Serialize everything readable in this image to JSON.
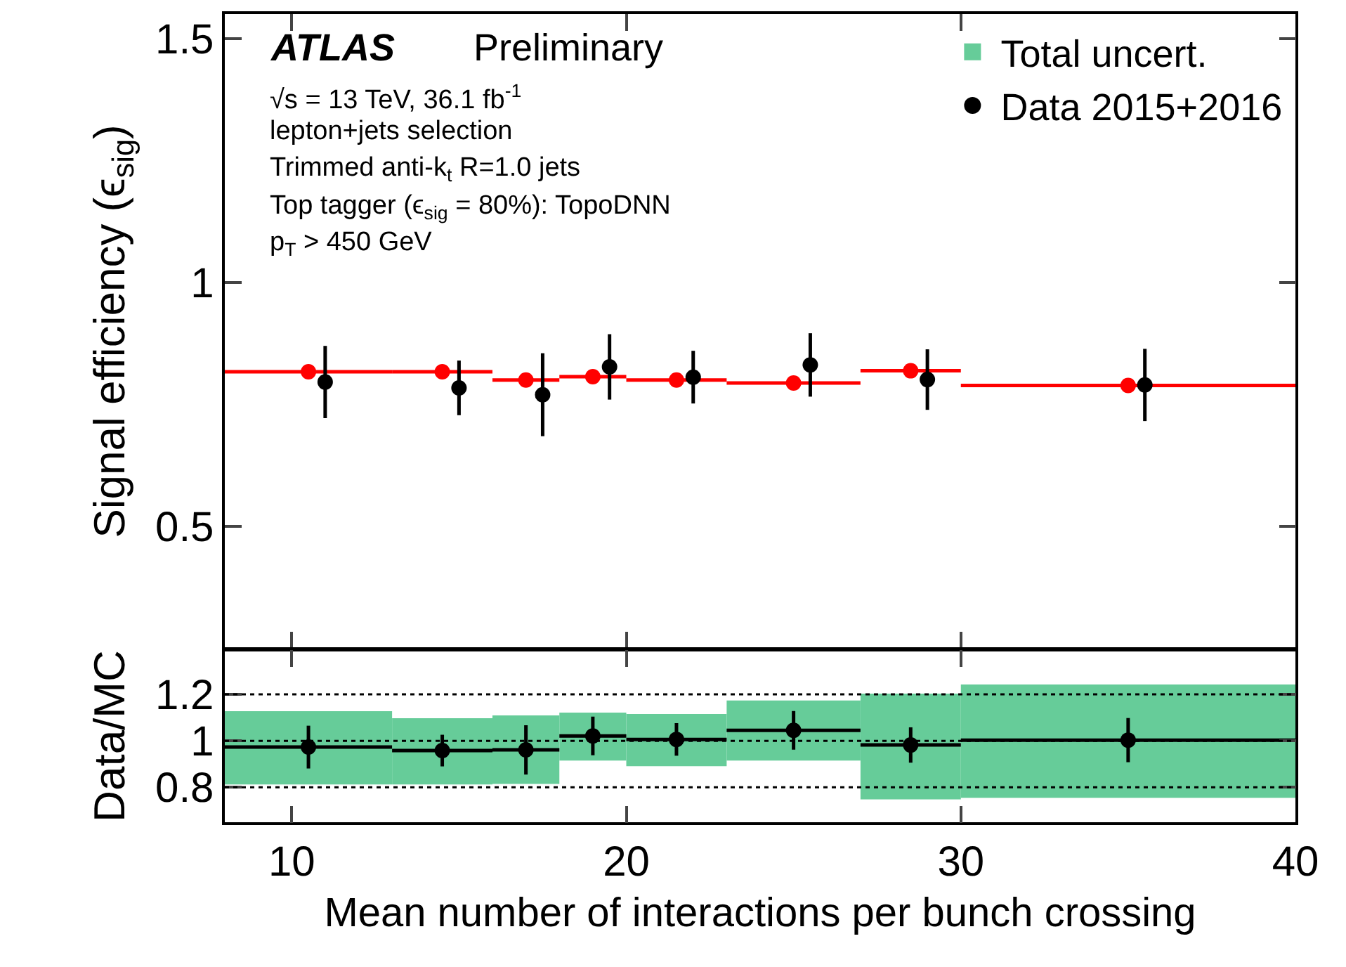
{
  "chart_data": [
    {
      "type": "scatter",
      "ylabel": "Signal efficiency (ϵ$_{sig}$)",
      "xlim": [
        8,
        40
      ],
      "ylim": [
        0.25,
        1.55
      ],
      "yticks": [
        0.5,
        1,
        1.5
      ],
      "xticks": [
        10,
        20,
        30,
        40
      ],
      "tick_labels": "y",
      "legend": "top right",
      "marker": "circle",
      "annotations": [
        "ATLAS",
        "Preliminary",
        "√s = 13 TeV, 36.1 fb$^{-1}$",
        "lepton+jets selection",
        "Trimmed anti-k$_{t}$ R=1.0 jets",
        "Top tagger (ϵ$_{sig}$ = 80%): TopoDNN",
        "p$_{T}$ > 450 GeV"
      ],
      "series": [
        {
          "color": "#ff0000",
          "x": [
            10.5,
            14.5,
            17.0,
            19.0,
            21.5,
            25.0,
            28.5,
            35.0
          ],
          "values": [
            0.817,
            0.817,
            0.8,
            0.807,
            0.8,
            0.794,
            0.819,
            0.789
          ],
          "xerrors": [
            [
              8,
              13
            ],
            [
              13,
              16
            ],
            [
              16,
              18
            ],
            [
              18,
              20
            ],
            [
              20,
              23
            ],
            [
              23,
              27
            ],
            [
              27,
              30
            ],
            [
              30,
              40
            ]
          ],
          "errors": [
            null,
            null,
            null,
            null,
            null,
            null,
            null,
            0.01
          ]
        },
        {
          "name": "Data 2015+2016",
          "color": "#000000",
          "x": [
            11.0,
            15.0,
            17.5,
            19.5,
            22.0,
            25.5,
            29.0,
            35.5
          ],
          "values": [
            0.796,
            0.784,
            0.77,
            0.827,
            0.806,
            0.831,
            0.801,
            0.79
          ],
          "errors": [
            0.074,
            0.056,
            0.085,
            0.067,
            0.054,
            0.065,
            0.062,
            0.074
          ]
        }
      ]
    },
    {
      "type": "scatter",
      "ylabel": "Data/MC",
      "xlabel": "Mean number of interactions per bunch crossing",
      "xlim": [
        8,
        40
      ],
      "ylim": [
        0.65,
        1.39
      ],
      "xticks": [
        10,
        20,
        30,
        40
      ],
      "yticks": [
        0.8,
        1,
        1.2
      ],
      "marker": "circle",
      "ref_lines": [
        {
          "axis": "y",
          "value": 0.8,
          "line_style": "dotted",
          "color": "#000000"
        },
        {
          "axis": "y",
          "value": 1,
          "line_style": "dotted",
          "color": "#000000"
        },
        {
          "axis": "y",
          "value": 1.2,
          "line_style": "dotted",
          "color": "#000000"
        }
      ],
      "series": [
        {
          "type": "histogram",
          "name": "Total uncert.",
          "color": "#66cc99",
          "bins": [
            8,
            13,
            16,
            18,
            20,
            23,
            27,
            30,
            40
          ],
          "values": [
            0.315,
            0.285,
            0.294,
            0.206,
            0.224,
            0.258,
            0.455,
            0.487
          ],
          "base": [
            0.812,
            0.812,
            0.815,
            0.915,
            0.891,
            0.915,
            0.748,
            0.755
          ]
        },
        {
          "color": "#000000",
          "x": [
            10.5,
            14.5,
            17.0,
            19.0,
            21.5,
            25.0,
            28.5,
            35.0
          ],
          "values": [
            0.973,
            0.958,
            0.961,
            1.021,
            1.006,
            1.045,
            0.982,
            1.003
          ],
          "errors": [
            0.092,
            0.068,
            0.106,
            0.083,
            0.07,
            0.083,
            0.076,
            0.095
          ],
          "xerrors": [
            [
              8,
              13
            ],
            [
              13,
              16
            ],
            [
              16,
              18
            ],
            [
              18,
              20
            ],
            [
              20,
              23
            ],
            [
              23,
              27
            ],
            [
              27,
              30
            ],
            [
              30,
              40
            ]
          ]
        }
      ]
    }
  ]
}
